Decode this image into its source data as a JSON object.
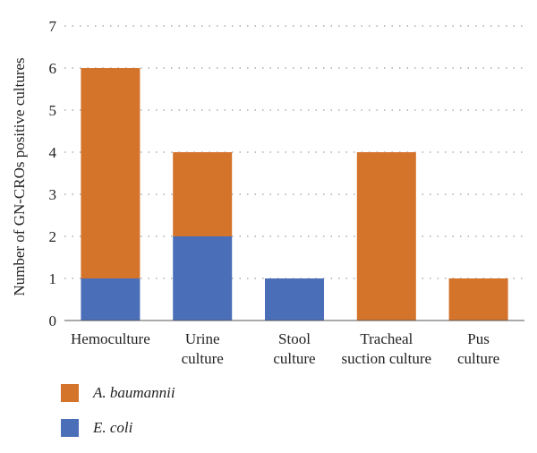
{
  "chart_data": {
    "type": "bar",
    "stacked": true,
    "categories": [
      "Hemoculture",
      "Urine culture",
      "Stool culture",
      "Tracheal suction culture",
      "Pus culture"
    ],
    "category_lines": [
      [
        "Hemoculture"
      ],
      [
        "Urine",
        "culture"
      ],
      [
        "Stool",
        "culture"
      ],
      [
        "Tracheal",
        "suction culture"
      ],
      [
        "Pus",
        "culture"
      ]
    ],
    "series": [
      {
        "name": "E. coli",
        "color": "#4a6fb8",
        "values": [
          1,
          2,
          1,
          0,
          0
        ]
      },
      {
        "name": "A. baumannii",
        "color": "#d4732a",
        "values": [
          5,
          2,
          0,
          4,
          1
        ]
      }
    ],
    "ylabel": "Number of GN-CROs positive cultures",
    "ylim": [
      0,
      7
    ],
    "yticks": [
      0,
      1,
      2,
      3,
      4,
      5,
      6,
      7
    ],
    "grid": "horizontal-dotted",
    "legend_order": [
      "A. baumannii",
      "E. coli"
    ],
    "legend_position": "bottom-left"
  }
}
